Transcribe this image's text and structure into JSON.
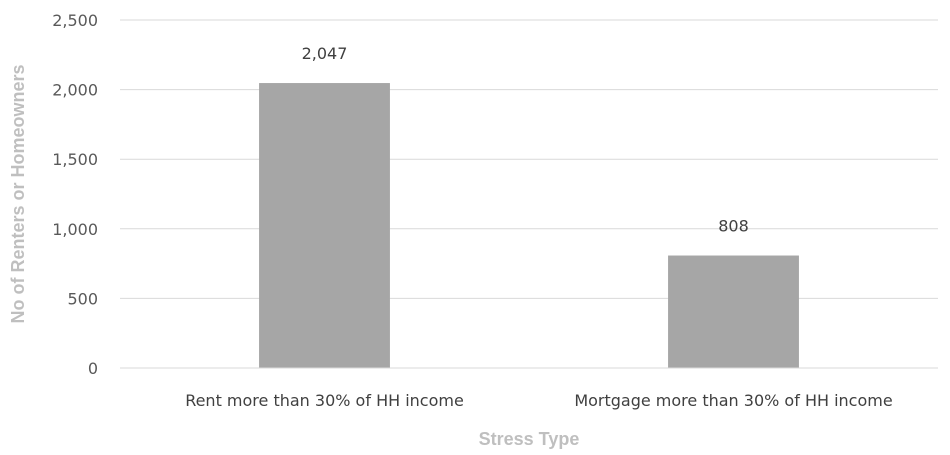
{
  "chart_data": {
    "type": "bar",
    "title": "",
    "xlabel": "Stress Type",
    "ylabel": "No of Renters or Homeowners",
    "categories": [
      "Rent more than 30% of HH income",
      "Mortgage more than 30% of HH income"
    ],
    "values": [
      2047,
      808
    ],
    "data_labels": [
      "2,047",
      "808"
    ],
    "ylim": [
      0,
      2500
    ],
    "yticks": [
      0,
      500,
      1000,
      1500,
      2000,
      2500
    ],
    "ytick_labels": [
      "0",
      "500",
      "1,000",
      "1,500",
      "2,000",
      "2,500"
    ],
    "grid": true,
    "legend": "none",
    "bar_color": "#a6a6a6"
  }
}
